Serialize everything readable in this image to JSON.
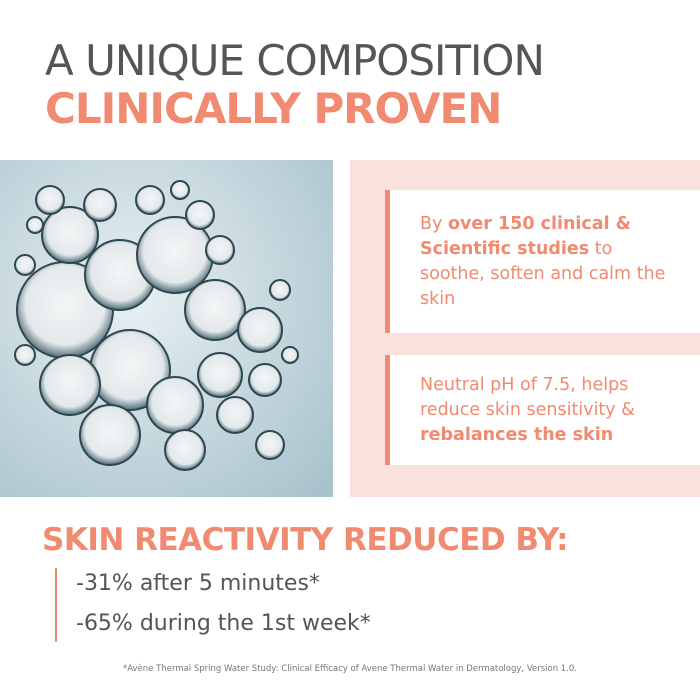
{
  "header": {
    "title": "A UNIQUE COMPOSITION",
    "subtitle": "CLINICALLY PROVEN"
  },
  "cards": [
    {
      "lead": "By ",
      "strong": "over 150 clinical & Scientific studies",
      "rest": " to soothe, soften and calm the skin"
    },
    {
      "lead": "Neutral pH of 7.5, helps reduce skin sensitivity & ",
      "strong": "rebalances the skin"
    }
  ],
  "results": {
    "heading": "SKIN REACTIVITY REDUCED BY:",
    "items": [
      "-31% after 5 minutes*",
      "-65% during the 1st week*"
    ]
  },
  "footnote": "*Avène Thermal Spring Water Study: Clinical Efficacy of Avene Thermal Water in Dermatology, Version 1.0."
}
